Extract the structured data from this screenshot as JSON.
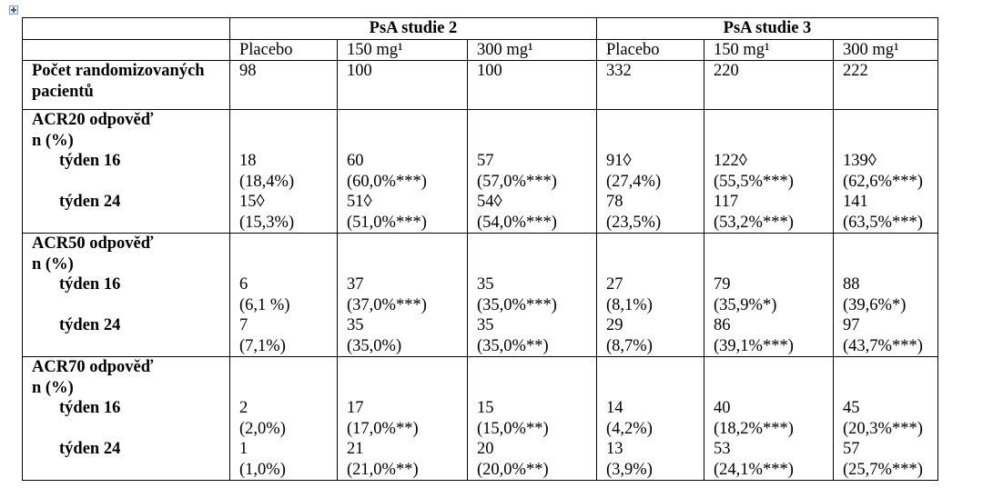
{
  "studies": [
    "PsA studie 2",
    "PsA studie 3"
  ],
  "dose_columns": [
    "Placebo",
    "150 mg¹",
    "300 mg¹",
    "Placebo",
    "150 mg¹",
    "300 mg¹"
  ],
  "randomized": {
    "label_line1": "Počet randomizovaných",
    "label_line2": "pacientů",
    "values": [
      "98",
      "100",
      "100",
      "332",
      "220",
      "222"
    ]
  },
  "sections": [
    {
      "title": "ACR20 odpověď",
      "unit": "n (%)",
      "rows": [
        {
          "label": "týden 16",
          "n": [
            "18",
            "60",
            "57",
            "91◊",
            "122◊",
            "139◊"
          ],
          "pct": [
            "(18,4%)",
            "(60,0%***)",
            "(57,0%***)",
            "(27,4%)",
            "(55,5%***)",
            "(62,6%***)"
          ]
        },
        {
          "label": "týden 24",
          "n": [
            "15◊",
            "51◊",
            "54◊",
            "78",
            "117",
            "141"
          ],
          "pct": [
            "(15,3%)",
            "(51,0%***)",
            "(54,0%***)",
            "(23,5%)",
            "(53,2%***)",
            "(63,5%***)"
          ]
        }
      ]
    },
    {
      "title": "ACR50 odpověď",
      "unit": "n (%)",
      "rows": [
        {
          "label": "týden 16",
          "n": [
            "6",
            "37",
            "35",
            "27",
            "79",
            "88"
          ],
          "pct": [
            "(6,1 %)",
            "(37,0%***)",
            "(35,0%***)",
            "(8,1%)",
            "(35,9%*)",
            "(39,6%*)"
          ]
        },
        {
          "label": "týden 24",
          "n": [
            "7",
            "35",
            "35",
            "29",
            "86",
            "97"
          ],
          "pct": [
            "(7,1%)",
            "(35,0%)",
            "(35,0%**)",
            "(8,7%)",
            "(39,1%***)",
            "(43,7%***)"
          ]
        }
      ]
    },
    {
      "title": "ACR70 odpověď",
      "unit": "n (%)",
      "rows": [
        {
          "label": "týden 16",
          "n": [
            "2",
            "17",
            "15",
            "14",
            "40",
            "45"
          ],
          "pct": [
            "(2,0%)",
            "(17,0%**)",
            "(15,0%**)",
            "(4,2%)",
            "(18,2%***)",
            "(20,3%***)"
          ]
        },
        {
          "label": "týden 24",
          "n": [
            "1",
            "21",
            "20",
            "13",
            "53",
            "57"
          ],
          "pct": [
            "(1,0%)",
            "(21,0%**)",
            "(20,0%**)",
            "(3,9%)",
            "(24,1%***)",
            "(25,7%***)"
          ]
        }
      ]
    }
  ]
}
